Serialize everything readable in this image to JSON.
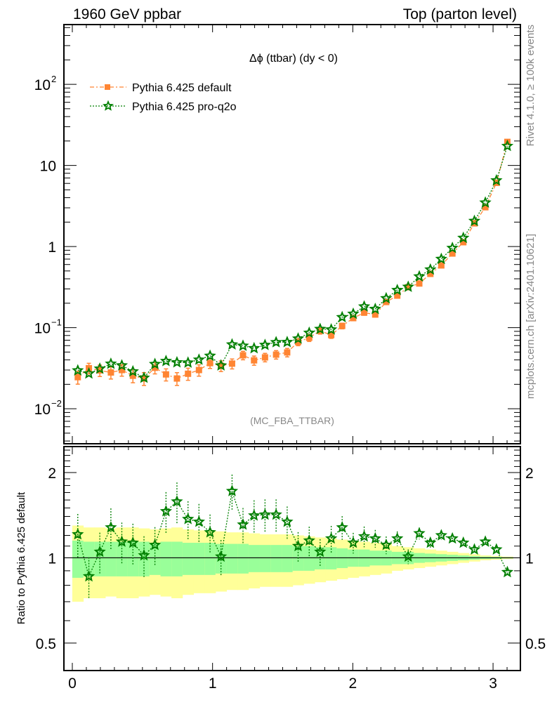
{
  "chart_data": {
    "type": "line",
    "header_left": "1960 GeV ppbar",
    "header_right": "Top (parton level)",
    "title": "Δϕ (ttbar) (dy < 0)",
    "analysis_tag": "(MC_FBA_TTBAR)",
    "side_text_top": "Rivet 4.1.0, ≥ 100k events",
    "side_text_bottom": "mcplots.cern.ch [arXiv:2401.10621]",
    "xlabel": "",
    "ylabel": "",
    "xlim": [
      -0.06,
      3.195
    ],
    "ylim": [
      0.0037,
      545
    ],
    "yscale": "log",
    "legend_position": "top-left",
    "x_ticks": [
      {
        "v": 0,
        "label": "0"
      },
      {
        "v": 1,
        "label": "1"
      },
      {
        "v": 2,
        "label": "2"
      },
      {
        "v": 3,
        "label": "3"
      }
    ],
    "y_ticks": [
      {
        "v": 100,
        "label": "10",
        "sup": "2"
      },
      {
        "v": 10,
        "label": "10",
        "sup": ""
      },
      {
        "v": 1,
        "label": "1",
        "sup": ""
      },
      {
        "v": 0.1,
        "label": "10",
        "sup": "−1"
      },
      {
        "v": 0.01,
        "label": "10",
        "sup": "−2"
      }
    ],
    "x": [
      0.039,
      0.118,
      0.196,
      0.275,
      0.353,
      0.432,
      0.511,
      0.589,
      0.668,
      0.746,
      0.825,
      0.903,
      0.982,
      1.06,
      1.139,
      1.217,
      1.296,
      1.374,
      1.453,
      1.532,
      1.61,
      1.689,
      1.767,
      1.846,
      1.924,
      2.003,
      2.081,
      2.16,
      2.238,
      2.317,
      2.395,
      2.474,
      2.553,
      2.631,
      2.71,
      2.788,
      2.867,
      2.945,
      3.024,
      3.102
    ],
    "series": [
      {
        "name": "Pythia 6.425 default",
        "color": "#ff8533",
        "marker": "square",
        "linestyle": "dashdot",
        "values": [
          0.0245,
          0.0316,
          0.0297,
          0.028,
          0.03,
          0.0255,
          0.0236,
          0.032,
          0.0265,
          0.0236,
          0.027,
          0.03,
          0.0365,
          0.0338,
          0.036,
          0.0456,
          0.0395,
          0.043,
          0.0465,
          0.0495,
          0.0665,
          0.075,
          0.0915,
          0.081,
          0.105,
          0.131,
          0.153,
          0.145,
          0.207,
          0.248,
          0.315,
          0.35,
          0.46,
          0.585,
          0.82,
          1.13,
          1.93,
          3.05,
          6.1,
          19.5
        ],
        "rel_err": [
          0.18,
          0.15,
          0.16,
          0.17,
          0.16,
          0.18,
          0.18,
          0.16,
          0.17,
          0.18,
          0.17,
          0.16,
          0.14,
          0.15,
          0.14,
          0.12,
          0.13,
          0.12,
          0.12,
          0.12,
          0.1,
          0.1,
          0.09,
          0.09,
          0.08,
          0.07,
          0.07,
          0.07,
          0.06,
          0.05,
          0.05,
          0.05,
          0.04,
          0.04,
          0.03,
          0.03,
          0.02,
          0.02,
          0.015,
          0.01
        ]
      },
      {
        "name": "Pythia 6.425 pro-q2o",
        "color": "#007f00",
        "marker": "star",
        "linestyle": "dotted",
        "ratio": [
          1.21,
          0.86,
          1.05,
          1.28,
          1.14,
          1.13,
          1.02,
          1.11,
          1.46,
          1.58,
          1.37,
          1.34,
          1.23,
          1.01,
          1.72,
          1.31,
          1.41,
          1.42,
          1.42,
          1.34,
          1.1,
          1.15,
          1.05,
          1.17,
          1.28,
          1.13,
          1.19,
          1.17,
          1.11,
          1.17,
          1.01,
          1.22,
          1.13,
          1.2,
          1.17,
          1.13,
          1.07,
          1.14,
          1.07,
          0.89
        ]
      }
    ],
    "ratio_panel": {
      "ylabel": "Ratio to Pythia 6.425 default",
      "ylim": [
        0.4,
        2.47
      ],
      "yscale": "log",
      "y_ticks": [
        {
          "v": 2,
          "label": "2"
        },
        {
          "v": 1,
          "label": "1"
        },
        {
          "v": 0.5,
          "label": "0.5"
        }
      ],
      "band_colors": {
        "outer": "#ffff99",
        "inner": "#99ff99"
      },
      "band_outer_halfwidth": [
        0.3,
        0.28,
        0.28,
        0.27,
        0.28,
        0.28,
        0.27,
        0.26,
        0.27,
        0.28,
        0.26,
        0.25,
        0.25,
        0.24,
        0.23,
        0.23,
        0.22,
        0.21,
        0.21,
        0.21,
        0.2,
        0.19,
        0.18,
        0.17,
        0.16,
        0.15,
        0.14,
        0.13,
        0.12,
        0.1,
        0.09,
        0.08,
        0.07,
        0.06,
        0.05,
        0.04,
        0.03,
        0.02,
        0.015,
        0.01
      ],
      "band_inner_halfwidth": [
        0.15,
        0.14,
        0.14,
        0.14,
        0.14,
        0.14,
        0.14,
        0.13,
        0.14,
        0.14,
        0.13,
        0.13,
        0.13,
        0.12,
        0.12,
        0.12,
        0.11,
        0.11,
        0.11,
        0.11,
        0.1,
        0.1,
        0.09,
        0.09,
        0.08,
        0.07,
        0.07,
        0.06,
        0.06,
        0.05,
        0.05,
        0.04,
        0.035,
        0.03,
        0.025,
        0.02,
        0.015,
        0.01,
        0.008,
        0.005
      ]
    }
  }
}
